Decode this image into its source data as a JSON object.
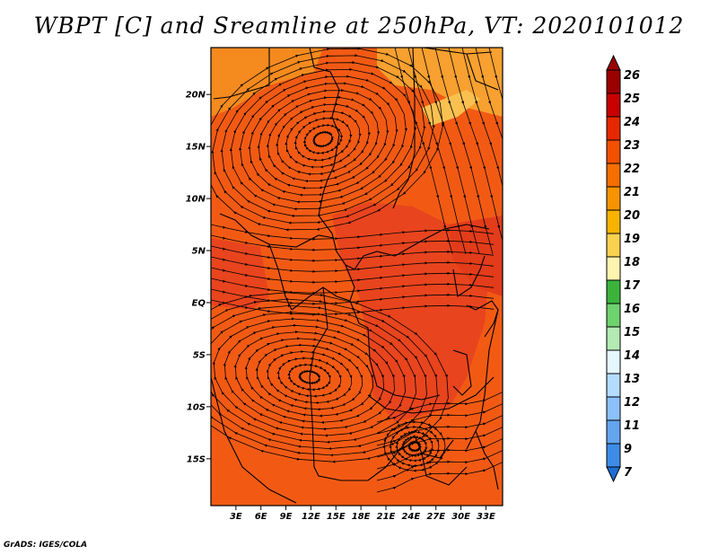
{
  "title": "WBPT [C] and Sreamline at 250hPa, VT: 2020101012",
  "credit": "GrADS: IGES/COLA",
  "lat_labels": [
    "20N",
    "15N",
    "10N",
    "5N",
    "EQ",
    "5S",
    "10S",
    "15S"
  ],
  "lat_values": [
    20,
    15,
    10,
    5,
    0,
    -5,
    -10,
    -15
  ],
  "lon_labels": [
    "3E",
    "6E",
    "9E",
    "12E",
    "15E",
    "18E",
    "21E",
    "24E",
    "27E",
    "30E",
    "33E"
  ],
  "lon_values": [
    3,
    6,
    9,
    12,
    15,
    18,
    21,
    24,
    27,
    30,
    33
  ],
  "map_extent": {
    "lon_min": 0,
    "lon_max": 35,
    "lat_min": -19.5,
    "lat_max": 24.5
  },
  "colorbar": {
    "labels": [
      "26",
      "25",
      "24",
      "23",
      "22",
      "21",
      "20",
      "19",
      "18",
      "17",
      "16",
      "15",
      "14",
      "13",
      "12",
      "11",
      "9",
      "7"
    ],
    "colors": [
      "#9a0000",
      "#c80000",
      "#e62800",
      "#f25000",
      "#f56e00",
      "#f59400",
      "#f8b400",
      "#fad250",
      "#fff4b0",
      "#3cb43c",
      "#6ed26e",
      "#b4eab4",
      "#e6f8ff",
      "#b4dcff",
      "#8cc0fa",
      "#64a5f0",
      "#3c8ce6",
      "#1e6ed2"
    ]
  },
  "field": {
    "background": "#f25a14",
    "regions": [
      {
        "name": "north-warm-patch",
        "color": "#f58a1e"
      },
      {
        "name": "northeast-warm-patch",
        "color": "#f8a030"
      },
      {
        "name": "northeast-pale-patch",
        "color": "#fac050"
      },
      {
        "name": "central-hot-patch",
        "color": "#e8441e"
      },
      {
        "name": "west-hot-patch",
        "color": "#e8441e"
      },
      {
        "name": "east-hot-patch",
        "color": "#e23c1a"
      }
    ]
  }
}
